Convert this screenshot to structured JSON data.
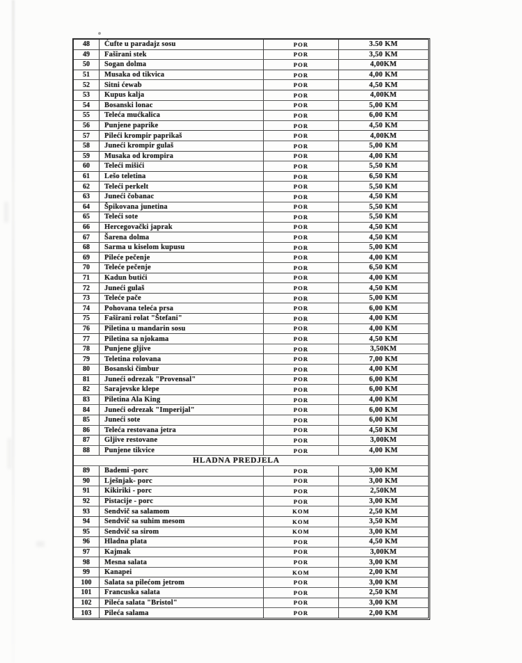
{
  "colors": {
    "ink": "#242424",
    "paper": "#fcfcfb",
    "line": "#4a4a4a"
  },
  "table": {
    "section_header": "HLADNA PREDJELA",
    "unit_values": [
      "POR",
      "KOM"
    ],
    "currency": "KM",
    "rows": [
      {
        "no": "48",
        "name": "Ćufte u paradajz sosu",
        "unit": "POR",
        "price": "3.50 KM"
      },
      {
        "no": "49",
        "name": "Faširani stek",
        "unit": "POR",
        "price": "3,50 KM"
      },
      {
        "no": "50",
        "name": "Sogan dolma",
        "unit": "POR",
        "price": "4,00KM"
      },
      {
        "no": "51",
        "name": "Musaka od tikvica",
        "unit": "POR",
        "price": "4,00 KM"
      },
      {
        "no": "52",
        "name": "Sitni ćewab",
        "unit": "POR",
        "price": "4,50 KM"
      },
      {
        "no": "53",
        "name": "Kupus kalja",
        "unit": "POR",
        "price": "4,00KM"
      },
      {
        "no": "54",
        "name": "Bosanski lonac",
        "unit": "POR",
        "price": "5,00 KM"
      },
      {
        "no": "55",
        "name": "Teleća mućkalica",
        "unit": "POR",
        "price": "6,00 KM"
      },
      {
        "no": "56",
        "name": "Punjene paprike",
        "unit": "POR",
        "price": "4,50 KM"
      },
      {
        "no": "57",
        "name": "Pileći krompir paprikaš",
        "unit": "POR",
        "price": "4,00KM"
      },
      {
        "no": "58",
        "name": "Juneći krompir gulaš",
        "unit": "POR",
        "price": "5,00 KM"
      },
      {
        "no": "59",
        "name": "Musaka od krompira",
        "unit": "POR",
        "price": "4,00 KM"
      },
      {
        "no": "60",
        "name": "Teleći mišići",
        "unit": "POR",
        "price": "5,50 KM"
      },
      {
        "no": "61",
        "name": "Lešo teletina",
        "unit": "POR",
        "price": "6,50 KM"
      },
      {
        "no": "62",
        "name": "Teleći perkelt",
        "unit": "POR",
        "price": "5,50 KM"
      },
      {
        "no": "63",
        "name": "Juneći čobanac",
        "unit": "POR",
        "price": "4,50 KM"
      },
      {
        "no": "64",
        "name": "Špikovana junetina",
        "unit": "POR",
        "price": "5,50 KM"
      },
      {
        "no": "65",
        "name": "Teleći sote",
        "unit": "POR",
        "price": "5,50 KM"
      },
      {
        "no": "66",
        "name": "Hercegovački japrak",
        "unit": "POR",
        "price": "4,50 KM"
      },
      {
        "no": "67",
        "name": "Šarena dolma",
        "unit": "POR",
        "price": "4,50 KM"
      },
      {
        "no": "68",
        "name": "Sarma u kiselom kupusu",
        "unit": "POR",
        "price": "5,00 KM"
      },
      {
        "no": "69",
        "name": "Pileće pečenje",
        "unit": "POR",
        "price": "4,00 KM"
      },
      {
        "no": "70",
        "name": "Teleće pečenje",
        "unit": "POR",
        "price": "6,50 KM"
      },
      {
        "no": "71",
        "name": "Kadun butići",
        "unit": "POR",
        "price": "4,00 KM"
      },
      {
        "no": "72",
        "name": "Juneći gulaš",
        "unit": "POR",
        "price": "4,50 KM"
      },
      {
        "no": "73",
        "name": "Teleće pače",
        "unit": "POR",
        "price": "5,00 KM"
      },
      {
        "no": "74",
        "name": "Pohovana teleća prsa",
        "unit": "POR",
        "price": "6,00 KM"
      },
      {
        "no": "75",
        "name": "Faširani rolat \"Štefani\"",
        "unit": "POR",
        "price": "4,00 KM"
      },
      {
        "no": "76",
        "name": "Piletina u mandarin sosu",
        "unit": "POR",
        "price": "4,00 KM"
      },
      {
        "no": "77",
        "name": "Piletina sa njokama",
        "unit": "POR",
        "price": "4,50 KM"
      },
      {
        "no": "78",
        "name": "Punjene gljive",
        "unit": "POR",
        "price": "3,50KM"
      },
      {
        "no": "79",
        "name": "Teletina rolovana",
        "unit": "POR",
        "price": "7,00 KM"
      },
      {
        "no": "80",
        "name": "Bosanski čimbur",
        "unit": "POR",
        "price": "4,00 KM"
      },
      {
        "no": "81",
        "name": "Juneći odrezak \"Provensal\"",
        "unit": "POR",
        "price": "6,00 KM"
      },
      {
        "no": "82",
        "name": "Sarajevske klepe",
        "unit": "POR",
        "price": "6,00 KM"
      },
      {
        "no": "83",
        "name": "Piletina Ala King",
        "unit": "POR",
        "price": "4,00 KM"
      },
      {
        "no": "84",
        "name": "Juneći odrezak \"Imperijal\"",
        "unit": "POR",
        "price": "6,00 KM"
      },
      {
        "no": "85",
        "name": "Juneći sote",
        "unit": "POR",
        "price": "6,00 KM"
      },
      {
        "no": "86",
        "name": "Teleća restovana jetra",
        "unit": "POR",
        "price": "4,50 KM"
      },
      {
        "no": "87",
        "name": "Gljive restovane",
        "unit": "POR",
        "price": "3,00KM"
      },
      {
        "no": "88",
        "name": "Punjene tikvice",
        "unit": "POR",
        "price": "4,00 KM"
      },
      {
        "section": "HLADNA PREDJELA"
      },
      {
        "no": "89",
        "name": "Bademi -porc",
        "unit": "POR",
        "price": "3,00 KM"
      },
      {
        "no": "90",
        "name": "Lješnjak- porc",
        "unit": "POR",
        "price": "3,00 KM"
      },
      {
        "no": "91",
        "name": "Kikiriki - porc",
        "unit": "POR",
        "price": "2,50KM"
      },
      {
        "no": "92",
        "name": "Pistacije - porc",
        "unit": "POR",
        "price": "3,00 KM"
      },
      {
        "no": "93",
        "name": "Sendvič sa salamom",
        "unit": "KOM",
        "price": "2,50 KM"
      },
      {
        "no": "94",
        "name": "Sendvič sa suhim mesom",
        "unit": "KOM",
        "price": "3,50 KM"
      },
      {
        "no": "95",
        "name": "Sendvič sa sirom",
        "unit": "KOM",
        "price": "3,00 KM"
      },
      {
        "no": "96",
        "name": "Hladna plata",
        "unit": "POR",
        "price": "4,50 KM"
      },
      {
        "no": "97",
        "name": "Kajmak",
        "unit": "POR",
        "price": "3,00KM"
      },
      {
        "no": "98",
        "name": "Mesna salata",
        "unit": "POR",
        "price": "3,00 KM"
      },
      {
        "no": "99",
        "name": "Kanapei",
        "unit": "KOM",
        "price": "2,00 KM"
      },
      {
        "no": "100",
        "name": "Salata sa pilećom jetrom",
        "unit": "POR",
        "price": "3,00 KM"
      },
      {
        "no": "101",
        "name": "Francuska salata",
        "unit": "POR",
        "price": "2,50 KM"
      },
      {
        "no": "102",
        "name": "Pileća salata \"Bristol\"",
        "unit": "POR",
        "price": "3,00 KM"
      },
      {
        "no": "103",
        "name": "Pileća salama",
        "unit": "POR",
        "price": "2,00 KM"
      }
    ]
  }
}
